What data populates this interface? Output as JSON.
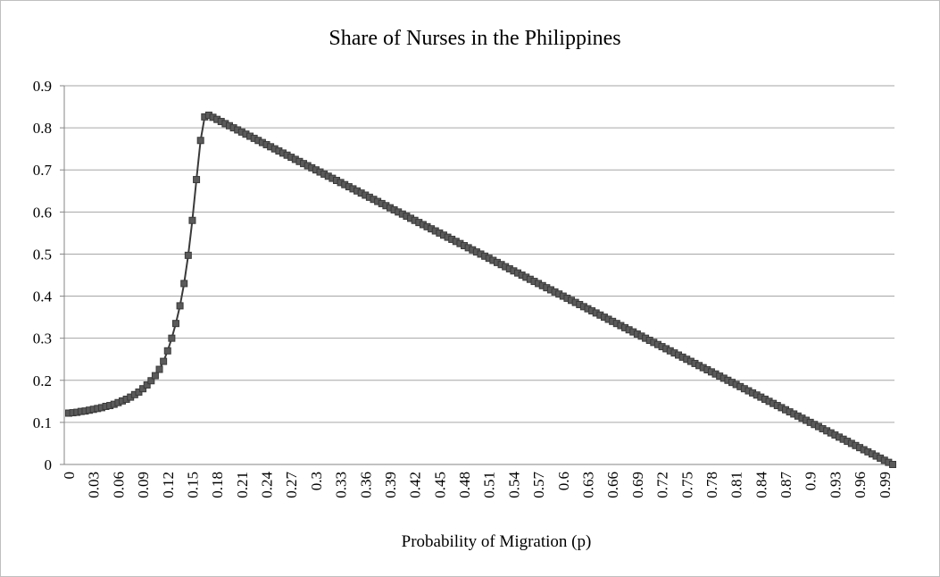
{
  "chart_data": {
    "type": "line",
    "title": "Share of Nurses in the Philippines",
    "x_label": "Probability of Migration (p)",
    "categories": [
      "0",
      null,
      null,
      null,
      null,
      null,
      "0.03",
      null,
      null,
      null,
      null,
      null,
      "0.06",
      null,
      null,
      null,
      null,
      null,
      "0.09",
      null,
      null,
      null,
      null,
      null,
      "0.12",
      null,
      null,
      null,
      null,
      null,
      "0.15",
      null,
      null,
      null,
      null,
      null,
      "0.18",
      null,
      null,
      null,
      null,
      null,
      "0.21",
      null,
      null,
      null,
      null,
      null,
      "0.24",
      null,
      null,
      null,
      null,
      null,
      "0.27",
      null,
      null,
      null,
      null,
      null,
      "0.3",
      null,
      null,
      null,
      null,
      null,
      "0.33",
      null,
      null,
      null,
      null,
      null,
      "0.36",
      null,
      null,
      null,
      null,
      null,
      "0.39",
      null,
      null,
      null,
      null,
      null,
      "0.42",
      null,
      null,
      null,
      null,
      null,
      "0.45",
      null,
      null,
      null,
      null,
      null,
      "0.48",
      null,
      null,
      null,
      null,
      null,
      "0.51",
      null,
      null,
      null,
      null,
      null,
      "0.54",
      null,
      null,
      null,
      null,
      null,
      "0.57",
      null,
      null,
      null,
      null,
      null,
      "0.6",
      null,
      null,
      null,
      null,
      null,
      "0.63",
      null,
      null,
      null,
      null,
      null,
      "0.66",
      null,
      null,
      null,
      null,
      null,
      "0.69",
      null,
      null,
      null,
      null,
      null,
      "0.72",
      null,
      null,
      null,
      null,
      null,
      "0.75",
      null,
      null,
      null,
      null,
      null,
      "0.78",
      null,
      null,
      null,
      null,
      null,
      "0.81",
      null,
      null,
      null,
      null,
      null,
      "0.84",
      null,
      null,
      null,
      null,
      null,
      "0.87",
      null,
      null,
      null,
      null,
      null,
      "0.9",
      null,
      null,
      null,
      null,
      null,
      "0.93",
      null,
      null,
      null,
      null,
      null,
      "0.96",
      null,
      null,
      null,
      null,
      null,
      "0.99",
      null,
      null
    ],
    "values": [
      0.122,
      0.123,
      0.124,
      0.126,
      0.127,
      0.129,
      0.131,
      0.133,
      0.135,
      0.138,
      0.14,
      0.143,
      0.147,
      0.151,
      0.155,
      0.16,
      0.166,
      0.172,
      0.18,
      0.189,
      0.199,
      0.211,
      0.226,
      0.245,
      0.27,
      0.3,
      0.335,
      0.377,
      0.43,
      0.497,
      0.58,
      0.677,
      0.77,
      0.826,
      0.83,
      0.825,
      0.82,
      0.815,
      0.81,
      0.805,
      0.8,
      0.795,
      0.79,
      0.785,
      0.78,
      0.775,
      0.77,
      0.765,
      0.76,
      0.755,
      0.75,
      0.745,
      0.74,
      0.735,
      0.73,
      0.725,
      0.72,
      0.715,
      0.71,
      0.705,
      0.7,
      0.695,
      0.69,
      0.685,
      0.68,
      0.675,
      0.67,
      0.665,
      0.66,
      0.655,
      0.65,
      0.645,
      0.64,
      0.635,
      0.63,
      0.625,
      0.62,
      0.615,
      0.61,
      0.605,
      0.6,
      0.595,
      0.59,
      0.585,
      0.58,
      0.575,
      0.57,
      0.565,
      0.56,
      0.555,
      0.55,
      0.545,
      0.54,
      0.535,
      0.53,
      0.525,
      0.52,
      0.515,
      0.51,
      0.505,
      0.5,
      0.495,
      0.49,
      0.485,
      0.48,
      0.475,
      0.47,
      0.465,
      0.46,
      0.455,
      0.45,
      0.445,
      0.44,
      0.435,
      0.43,
      0.425,
      0.42,
      0.415,
      0.41,
      0.405,
      0.4,
      0.395,
      0.39,
      0.385,
      0.38,
      0.375,
      0.37,
      0.365,
      0.36,
      0.355,
      0.35,
      0.345,
      0.34,
      0.335,
      0.33,
      0.325,
      0.32,
      0.315,
      0.31,
      0.305,
      0.3,
      0.295,
      0.29,
      0.285,
      0.28,
      0.275,
      0.27,
      0.265,
      0.26,
      0.255,
      0.25,
      0.245,
      0.24,
      0.235,
      0.23,
      0.225,
      0.22,
      0.215,
      0.21,
      0.205,
      0.2,
      0.195,
      0.19,
      0.185,
      0.18,
      0.175,
      0.17,
      0.165,
      0.16,
      0.155,
      0.15,
      0.145,
      0.14,
      0.135,
      0.13,
      0.125,
      0.12,
      0.115,
      0.11,
      0.105,
      0.1,
      0.095,
      0.09,
      0.085,
      0.08,
      0.075,
      0.07,
      0.065,
      0.06,
      0.055,
      0.05,
      0.045,
      0.04,
      0.035,
      0.03,
      0.025,
      0.02,
      0.015,
      0.01,
      0.005,
      0
    ],
    "color": "#3a3a3a",
    "marker_color": "#5a5a5a",
    "ylim": [
      0,
      0.9
    ],
    "yticks": [
      0,
      0.1,
      0.2,
      0.3,
      0.4,
      0.5,
      0.6,
      0.7,
      0.8,
      0.9
    ],
    "grid": true
  }
}
